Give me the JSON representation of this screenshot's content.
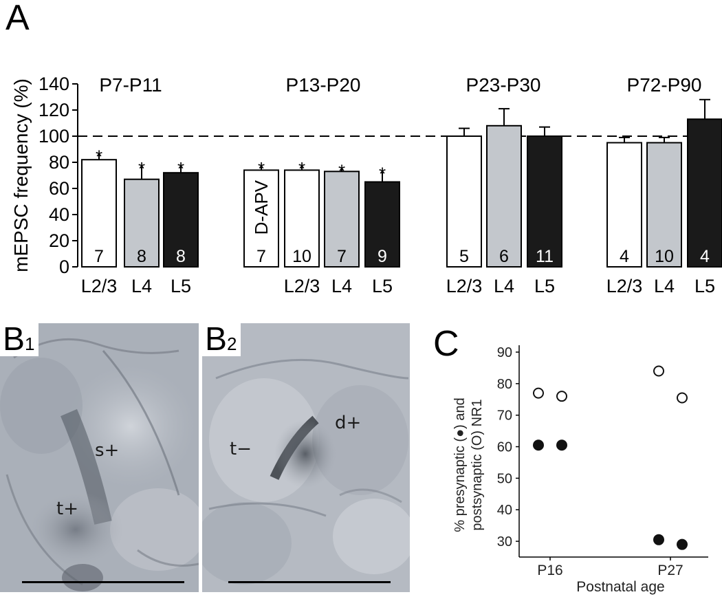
{
  "panels": {
    "a_label": "A",
    "b1_label": "B",
    "b1_sub": "1",
    "b2_label": "B",
    "b2_sub": "2",
    "c_label": "C"
  },
  "micrographs": {
    "b1_labels": [
      "s+",
      "t+"
    ],
    "b2_labels": [
      "t−",
      "d+"
    ]
  },
  "chart_data": [
    {
      "type": "bar",
      "ylabel": "mEPSC frequency (%)",
      "ylim": [
        0,
        140
      ],
      "yticks": [
        0,
        20,
        40,
        60,
        80,
        100,
        120,
        140
      ],
      "reference_line": 100,
      "groups": [
        {
          "label": "P7-P11",
          "bars": [
            {
              "layer": "L2/3",
              "value": 82,
              "error": 5,
              "n": "7",
              "fill": "white",
              "star": true,
              "tick": "L2/3"
            },
            {
              "layer": "L4",
              "value": 67,
              "error": 11,
              "n": "8",
              "fill": "gray",
              "star": true,
              "tick": "L4"
            },
            {
              "layer": "L5",
              "value": 72,
              "error": 6,
              "n": "8",
              "fill": "black",
              "star": true,
              "tick": "L5"
            }
          ]
        },
        {
          "label": "P13-P20",
          "bars": [
            {
              "layer": "L2/3",
              "value": 74,
              "error": 4,
              "n": "7",
              "fill": "white",
              "star": true,
              "tick": "",
              "inner": "D-APV"
            },
            {
              "layer": "L2/3",
              "value": 74,
              "error": 4,
              "n": "10",
              "fill": "white",
              "star": true,
              "tick": "L2/3"
            },
            {
              "layer": "L4",
              "value": 73,
              "error": 3,
              "n": "7",
              "fill": "gray",
              "star": true,
              "tick": "L4"
            },
            {
              "layer": "L5",
              "value": 65,
              "error": 9,
              "n": "9",
              "fill": "black",
              "star": true,
              "tick": "L5"
            }
          ]
        },
        {
          "label": "P23-P30",
          "bars": [
            {
              "layer": "L2/3",
              "value": 100,
              "error": 6,
              "n": "5",
              "fill": "white",
              "star": false,
              "tick": "L2/3"
            },
            {
              "layer": "L4",
              "value": 108,
              "error": 13,
              "n": "6",
              "fill": "gray",
              "star": false,
              "tick": "L4"
            },
            {
              "layer": "L5",
              "value": 100,
              "error": 7,
              "n": "11",
              "fill": "black",
              "star": false,
              "tick": "L5"
            }
          ]
        },
        {
          "label": "P72-P90",
          "bars": [
            {
              "layer": "L2/3",
              "value": 95,
              "error": 4,
              "n": "4",
              "fill": "white",
              "star": false,
              "tick": "L2/3"
            },
            {
              "layer": "L4",
              "value": 95,
              "error": 4,
              "n": "10",
              "fill": "gray",
              "star": false,
              "tick": "L4"
            },
            {
              "layer": "L5",
              "value": 113,
              "error": 15,
              "n": "4",
              "fill": "black",
              "star": false,
              "tick": "L5"
            }
          ]
        }
      ],
      "colors": {
        "white": "#ffffff",
        "gray": "#c3c7cc",
        "black": "#1a1a1a"
      }
    },
    {
      "type": "scatter",
      "xlabel": "Postnatal age",
      "ylabel_line1": "% presynaptic (●) and",
      "ylabel_line2": "postsynaptic (O) NR1",
      "ylim": [
        25,
        90
      ],
      "yticks": [
        30,
        40,
        50,
        60,
        70,
        80,
        90
      ],
      "categories": [
        "P16",
        "P27"
      ],
      "series": [
        {
          "marker": "open",
          "points": [
            {
              "x": "P16",
              "offset": -1,
              "y": 77
            },
            {
              "x": "P16",
              "offset": 1,
              "y": 76
            },
            {
              "x": "P27",
              "offset": -1,
              "y": 84
            },
            {
              "x": "P27",
              "offset": 1,
              "y": 75.5
            }
          ]
        },
        {
          "marker": "filled",
          "points": [
            {
              "x": "P16",
              "offset": -1,
              "y": 60.5
            },
            {
              "x": "P16",
              "offset": 1,
              "y": 60.5
            },
            {
              "x": "P27",
              "offset": -1,
              "y": 30.5
            },
            {
              "x": "P27",
              "offset": 1,
              "y": 29
            }
          ]
        }
      ]
    }
  ]
}
